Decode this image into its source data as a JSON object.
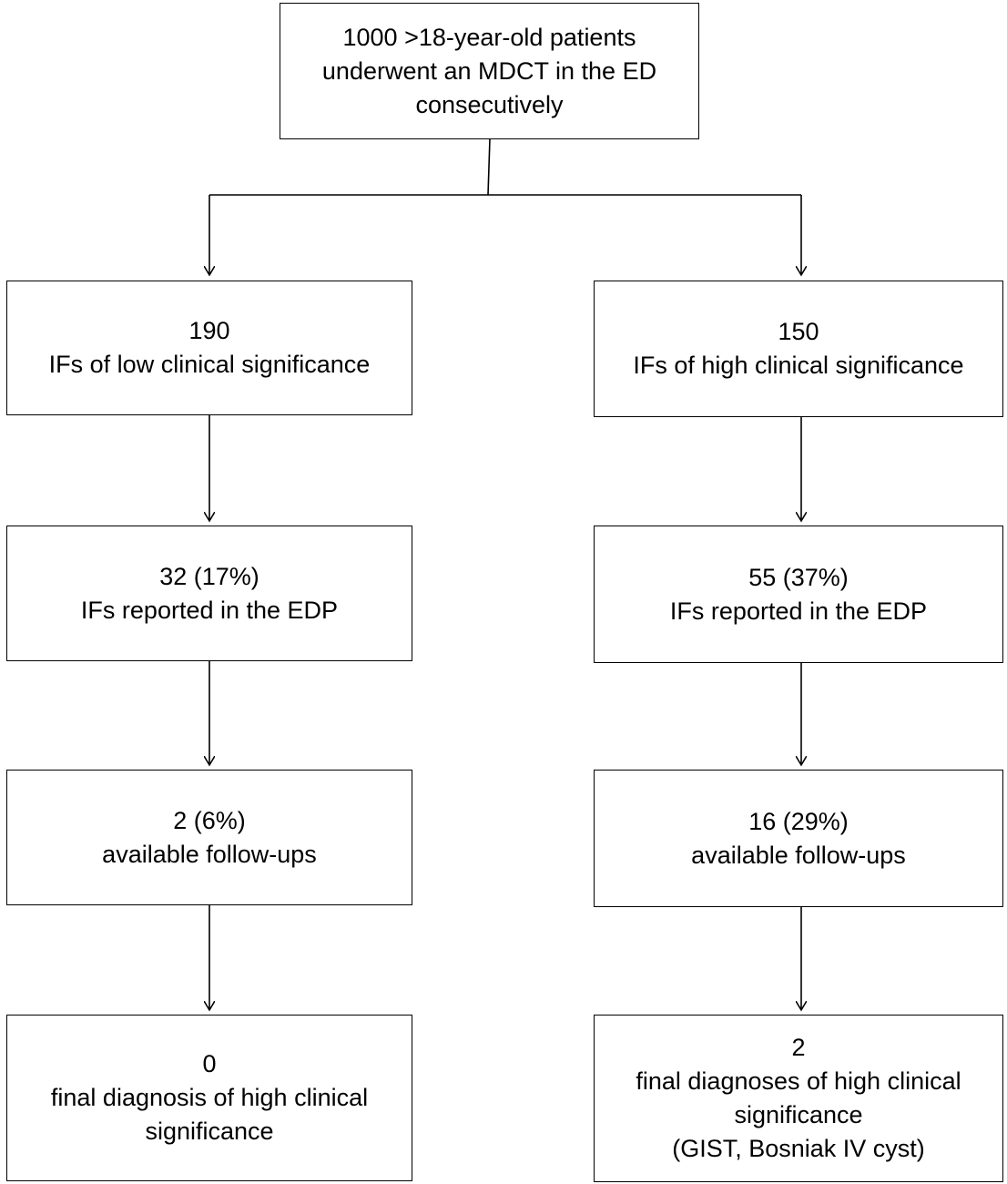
{
  "flowchart": {
    "root": {
      "lines": [
        "1000 >18-year-old patients",
        "underwent an MDCT in the ED",
        "consecutively"
      ]
    },
    "left": [
      {
        "lines": [
          "190",
          "IFs of low clinical significance"
        ]
      },
      {
        "lines": [
          "32 (17%)",
          "IFs reported in the EDP"
        ]
      },
      {
        "lines": [
          "2 (6%)",
          "available follow-ups"
        ]
      },
      {
        "lines": [
          "0",
          "final diagnosis of high clinical",
          "significance"
        ]
      }
    ],
    "right": [
      {
        "lines": [
          "150",
          "IFs of high clinical significance"
        ]
      },
      {
        "lines": [
          "55 (37%)",
          "IFs reported in the EDP"
        ]
      },
      {
        "lines": [
          "16 (29%)",
          "available follow-ups"
        ]
      },
      {
        "lines": [
          "2",
          "final diagnoses of high clinical",
          "significance",
          "(GIST, Bosniak IV cyst)"
        ]
      }
    ]
  },
  "colors": {
    "stroke": "#000000",
    "background": "#ffffff"
  }
}
